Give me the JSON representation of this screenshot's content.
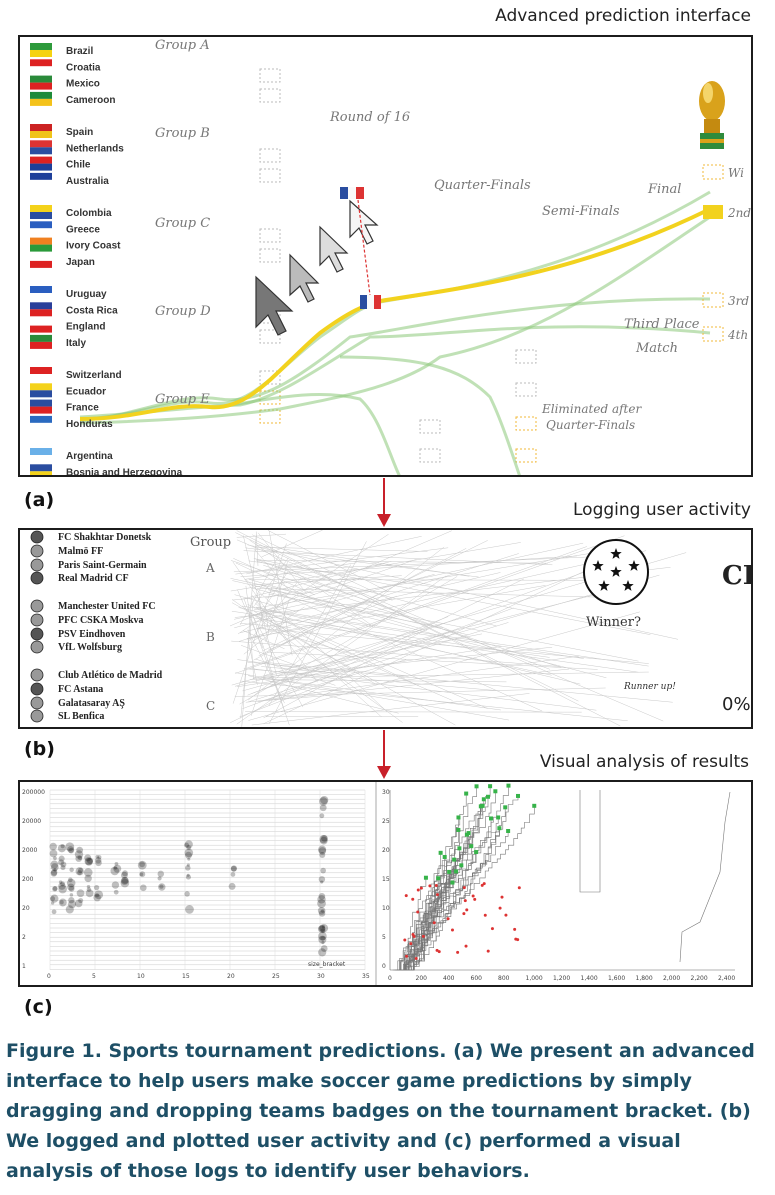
{
  "panel_a": {
    "title": "Advanced prediction interface",
    "label": "(a)",
    "groups": [
      {
        "label": "Group A",
        "teams": [
          "Brazil",
          "Croatia",
          "Mexico",
          "Cameroon"
        ]
      },
      {
        "label": "Group B",
        "teams": [
          "Spain",
          "Netherlands",
          "Chile",
          "Australia"
        ]
      },
      {
        "label": "Group C",
        "teams": [
          "Colombia",
          "Greece",
          "Ivory Coast",
          "Japan"
        ]
      },
      {
        "label": "Group D",
        "teams": [
          "Uruguay",
          "Costa Rica",
          "England",
          "Italy"
        ]
      },
      {
        "label": "Group E",
        "teams": [
          "Switzerland",
          "Ecuador",
          "France",
          "Honduras"
        ]
      },
      {
        "label": "",
        "teams": [
          "Argentina",
          "Bosnia and Herzegovina"
        ]
      }
    ],
    "stages": {
      "round_of_16": "Round of 16",
      "quarter_finals": "Quarter-Finals",
      "semi_finals": "Semi-Finals",
      "final": "Final",
      "third_place": "Third Place",
      "third_place_2": "Match",
      "eliminated": "Eliminated after",
      "eliminated_2": "Quarter-Finals"
    },
    "places": {
      "winner": "Wi",
      "second": "2nd",
      "third": "3rd",
      "fourth": "4th"
    }
  },
  "panel_b": {
    "title": "Logging user activity",
    "label": "(b)",
    "group_header": "Group",
    "group_letters": [
      "A",
      "B",
      "C"
    ],
    "clubs": [
      "FC Shakhtar Donetsk",
      "Malmö FF",
      "Paris Saint-Germain",
      "Real Madrid CF",
      "Manchester United FC",
      "PFC CSKA Moskva",
      "PSV Eindhoven",
      "VfL Wolfsburg",
      "Club Atlético de Madrid",
      "FC Astana",
      "Galatasaray AŞ",
      "SL Benfica"
    ],
    "winner_label": "Winner?",
    "runner_up_label": "Runner up!",
    "edge_title": "CH",
    "percent_label": "0%"
  },
  "panel_c": {
    "title": "Visual analysis of results",
    "label": "(c)",
    "left_plot": {
      "y_ticks": [
        "200000",
        "20000",
        "2000",
        "200",
        "20",
        "2",
        "1"
      ],
      "x_ticks": [
        "0",
        "5",
        "10",
        "15",
        "20",
        "25",
        "30",
        "35"
      ],
      "x_axis_label": "size_bracket"
    },
    "right_plot": {
      "x_ticks": [
        "0",
        "200",
        "400",
        "600",
        "800",
        "1,000",
        "1,200",
        "1,400",
        "1,600",
        "1,800",
        "2,000",
        "2,200",
        "2,400"
      ],
      "y_ticks": [
        "0",
        "5",
        "10",
        "15",
        "20",
        "25",
        "30"
      ]
    }
  },
  "caption": {
    "text": "Figure 1. Sports tournament predictions. (a) We present an advanced interface to help users make soccer game predictions by simply dragging and dropping teams badges on the tournament bracket. (b) We logged and plotted user activity and (c) performed a visual analysis of those logs to identify user behaviors."
  },
  "colors": {
    "arrow": "#c8202a",
    "caption": "#1e4f66",
    "path_green": "#8cc97a",
    "path_yellow": "#f2d21e",
    "slot_orange": "#f0b83a"
  }
}
